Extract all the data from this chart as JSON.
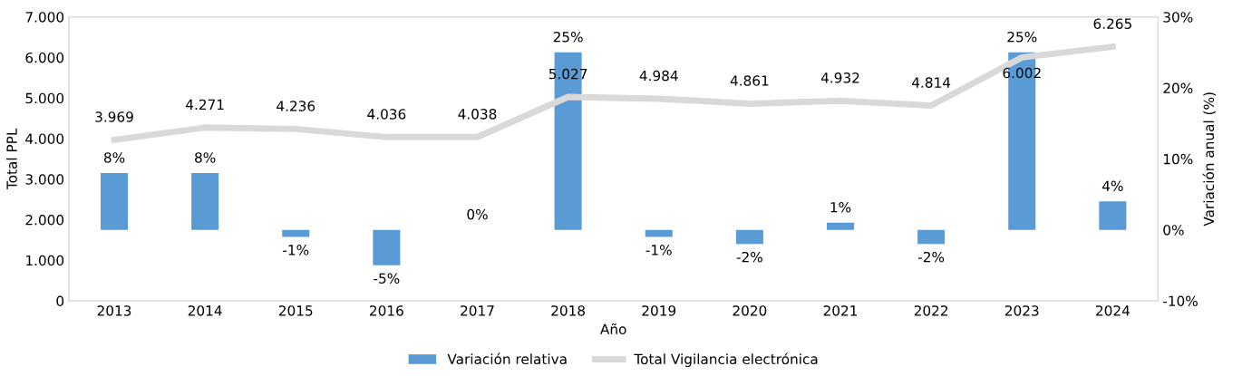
{
  "chart_data": {
    "type": "bar",
    "xlabel": "Año",
    "ylabel": "Total PPL",
    "y2label": "Variación anual (%)",
    "categories": [
      "2013",
      "2014",
      "2015",
      "2016",
      "2017",
      "2018",
      "2019",
      "2020",
      "2021",
      "2022",
      "2023",
      "2024"
    ],
    "series": [
      {
        "name": "Variación relativa",
        "axis": "y2",
        "color": "#5b9bd5",
        "values": [
          8,
          8,
          -1,
          -5,
          0,
          25,
          -1,
          -2,
          1,
          -2,
          25,
          4
        ],
        "value_labels": [
          "8%",
          "8%",
          "-1%",
          "-5%",
          "0%",
          "25%",
          "-1%",
          "-2%",
          "1%",
          "-2%",
          "25%",
          "4%"
        ]
      },
      {
        "name": "Total Vigilancia electrónica",
        "type": "line",
        "color": "#d9d9d9",
        "values": [
          3969,
          4271,
          4236,
          4036,
          4038,
          5027,
          4984,
          4861,
          4932,
          4814,
          6002,
          6265
        ],
        "value_labels": [
          "3.969",
          "4.271",
          "4.236",
          "4.036",
          "4.038",
          "5.027",
          "4.984",
          "4.861",
          "4.932",
          "4.814",
          "6.002",
          "6.265"
        ]
      }
    ],
    "ylim": [
      0,
      7000
    ],
    "yticks": [
      {
        "value": 0,
        "label": "0"
      },
      {
        "value": 1000,
        "label": "1.000"
      },
      {
        "value": 2000,
        "label": "2.000"
      },
      {
        "value": 3000,
        "label": "3.000"
      },
      {
        "value": 4000,
        "label": "4.000"
      },
      {
        "value": 5000,
        "label": "5.000"
      },
      {
        "value": 6000,
        "label": "6.000"
      },
      {
        "value": 7000,
        "label": "7.000"
      }
    ],
    "y2lim": [
      -10,
      30
    ],
    "y2ticks": [
      {
        "value": -10,
        "label": "-10%"
      },
      {
        "value": 0,
        "label": "0%"
      },
      {
        "value": 10,
        "label": "10%"
      },
      {
        "value": 20,
        "label": "20%"
      },
      {
        "value": 30,
        "label": "30%"
      }
    ],
    "grid": false,
    "legend": "bottom",
    "marker": "none",
    "line_style": "solid"
  }
}
